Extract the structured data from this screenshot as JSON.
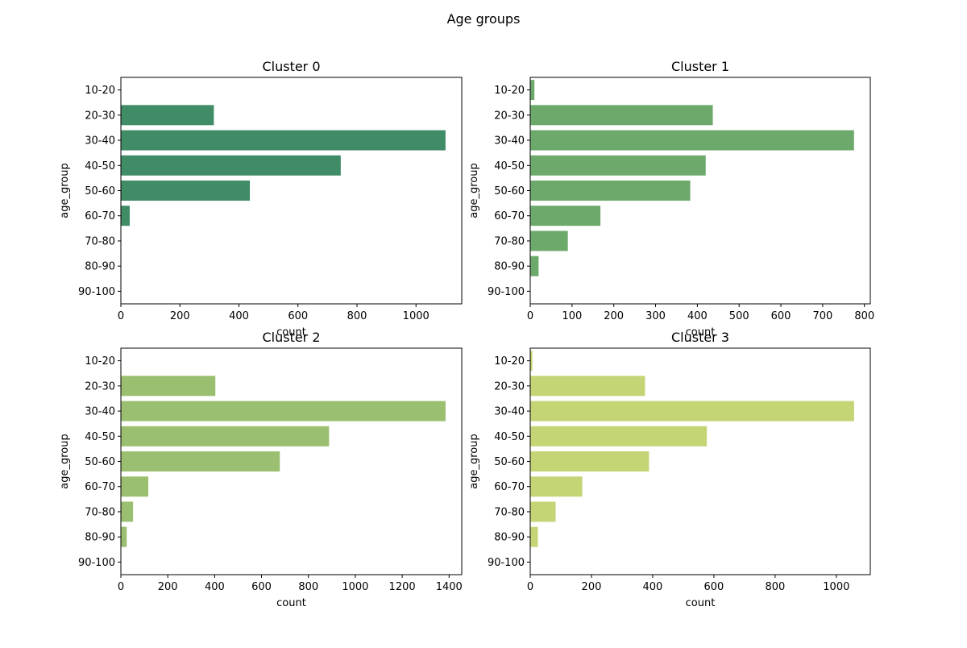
{
  "figure": {
    "title": "Age groups"
  },
  "chart_data": [
    {
      "type": "bar",
      "orientation": "horizontal",
      "title": "Cluster 0",
      "xlabel": "count",
      "ylabel": "age_group",
      "categories": [
        "10-20",
        "20-30",
        "30-40",
        "40-50",
        "50-60",
        "60-70",
        "70-80",
        "80-90",
        "90-100"
      ],
      "values": [
        0,
        315,
        1100,
        745,
        437,
        30,
        0,
        0,
        0
      ],
      "xlim": [
        0,
        1155
      ],
      "xticks": [
        0,
        200,
        400,
        600,
        800,
        1000
      ],
      "color": "#3f8c66"
    },
    {
      "type": "bar",
      "orientation": "horizontal",
      "title": "Cluster 1",
      "xlabel": "count",
      "ylabel": "age_group",
      "categories": [
        "10-20",
        "20-30",
        "30-40",
        "40-50",
        "50-60",
        "60-70",
        "70-80",
        "80-90",
        "90-100"
      ],
      "values": [
        10,
        437,
        775,
        420,
        383,
        168,
        90,
        20,
        0
      ],
      "xlim": [
        0,
        814
      ],
      "xticks": [
        0,
        100,
        200,
        300,
        400,
        500,
        600,
        700,
        800
      ],
      "color": "#6ea96c"
    },
    {
      "type": "bar",
      "orientation": "horizontal",
      "title": "Cluster 2",
      "xlabel": "count",
      "ylabel": "age_group",
      "categories": [
        "10-20",
        "20-30",
        "30-40",
        "40-50",
        "50-60",
        "60-70",
        "70-80",
        "80-90",
        "90-100"
      ],
      "values": [
        0,
        403,
        1385,
        888,
        678,
        117,
        52,
        25,
        0
      ],
      "xlim": [
        0,
        1454
      ],
      "xticks": [
        0,
        200,
        400,
        600,
        800,
        1000,
        1200,
        1400
      ],
      "color": "#9abf70"
    },
    {
      "type": "bar",
      "orientation": "horizontal",
      "title": "Cluster 3",
      "xlabel": "count",
      "ylabel": "age_group",
      "categories": [
        "10-20",
        "20-30",
        "30-40",
        "40-50",
        "50-60",
        "60-70",
        "70-80",
        "80-90",
        "90-100"
      ],
      "values": [
        7,
        375,
        1058,
        577,
        388,
        170,
        83,
        25,
        0
      ],
      "xlim": [
        0,
        1111
      ],
      "xticks": [
        0,
        200,
        400,
        600,
        800,
        1000
      ],
      "color": "#c3d574"
    }
  ]
}
